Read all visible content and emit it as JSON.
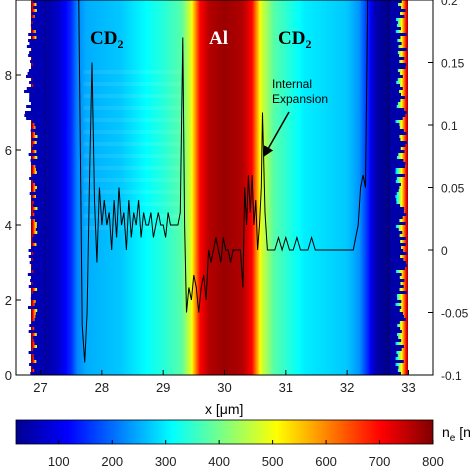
{
  "chart_data": {
    "type": "line",
    "background": "2D color map (density)",
    "regions": [
      {
        "label": "CD2",
        "color": "#000000",
        "x": 28.3
      },
      {
        "label": "Al",
        "color": "#ffffff",
        "x": 30.0
      },
      {
        "label": "CD2",
        "color": "#000000",
        "x": 31.3
      }
    ],
    "annotation": {
      "text_line1": "Internal",
      "text_line2": "Expansion",
      "arrow_target": {
        "x": 30.62,
        "y": 0.11
      }
    },
    "xlabel": "x [μm]",
    "xlim": [
      26.6,
      33.4
    ],
    "xticks": [
      "27",
      "28",
      "29",
      "30",
      "31",
      "32",
      "33"
    ],
    "left_ylim": [
      0,
      10
    ],
    "left_yticks": [
      "0",
      "2",
      "4",
      "6",
      "8"
    ],
    "right_ylim": [
      -0.1,
      0.2
    ],
    "right_yticks": [
      "-0.1",
      "-0.05",
      "0",
      "0.05",
      "0.1",
      "0.15",
      "0.2"
    ],
    "colorbar": {
      "label": "n_e [n",
      "ticks": [
        "100",
        "200",
        "300",
        "400",
        "500",
        "600",
        "700",
        "800"
      ],
      "range": [
        20,
        800
      ],
      "colormap": "jet"
    },
    "density_profile": {
      "x": [
        26.6,
        26.85,
        27.05,
        27.3,
        27.5,
        27.6,
        27.75,
        28.3,
        29.0,
        29.3,
        29.45,
        29.6,
        29.75,
        30.0,
        30.3,
        30.45,
        30.6,
        30.8,
        31.3,
        32.0,
        32.2,
        32.35,
        32.45,
        32.7,
        33.0,
        33.4
      ],
      "value": [
        800,
        800,
        40,
        80,
        150,
        220,
        250,
        270,
        340,
        380,
        480,
        700,
        760,
        780,
        760,
        700,
        480,
        380,
        300,
        270,
        230,
        140,
        60,
        20,
        800,
        800
      ]
    },
    "series": [
      {
        "axis": "right",
        "color": "#000000",
        "x": [
          27.62,
          27.68,
          27.72,
          27.76,
          27.8,
          27.84,
          27.88,
          27.92,
          27.96,
          28.0,
          28.04,
          28.08,
          28.12,
          28.16,
          28.2,
          28.24,
          28.28,
          28.32,
          28.36,
          28.4,
          28.44,
          28.48,
          28.52,
          28.56,
          28.6,
          28.64,
          28.68,
          28.72,
          28.76,
          28.8,
          28.84,
          28.88,
          28.92,
          28.96,
          29.0,
          29.04,
          29.08,
          29.12,
          29.16,
          29.2,
          29.24,
          29.28,
          29.32,
          29.35,
          29.38,
          29.42,
          29.46,
          29.5,
          29.54,
          29.58,
          29.62,
          29.66,
          29.7,
          29.74,
          29.78,
          29.82,
          29.86,
          29.9,
          29.94,
          29.98,
          30.02,
          30.06,
          30.1,
          30.14,
          30.18,
          30.22,
          30.26,
          30.3,
          30.33,
          30.36,
          30.39,
          30.42,
          30.45,
          30.48,
          30.51,
          30.54,
          30.57,
          30.6,
          30.62,
          30.66,
          30.7,
          30.76,
          30.82,
          30.88,
          30.94,
          31.0,
          31.06,
          31.12,
          31.18,
          31.24,
          31.3,
          31.36,
          31.42,
          31.48,
          31.54,
          31.6,
          31.66,
          31.72,
          31.78,
          31.84,
          31.9,
          31.96,
          32.02,
          32.06,
          32.1,
          32.14,
          32.18,
          32.22,
          32.26,
          32.3,
          32.34
        ],
        "y": [
          0.22,
          -0.06,
          -0.09,
          -0.05,
          0.06,
          0.15,
          0.04,
          -0.01,
          0.05,
          0.02,
          0.04,
          0.02,
          0.03,
          0.0,
          0.04,
          0.01,
          0.05,
          0.02,
          0.03,
          0.0,
          0.04,
          0.01,
          0.03,
          0.02,
          0.04,
          0.01,
          0.03,
          0.02,
          0.02,
          0.03,
          0.01,
          0.02,
          0.03,
          0.02,
          0.02,
          0.01,
          0.03,
          0.02,
          0.02,
          0.02,
          0.02,
          0.03,
          0.17,
          0.02,
          -0.05,
          -0.03,
          -0.04,
          -0.02,
          -0.03,
          -0.05,
          -0.03,
          -0.02,
          -0.04,
          0.0,
          -0.01,
          0.0,
          0.01,
          0.0,
          -0.01,
          0.01,
          0.0,
          0.0,
          -0.01,
          0.0,
          0.0,
          0.0,
          0.0,
          -0.03,
          0.05,
          0.02,
          0.06,
          0.03,
          0.06,
          0.02,
          0.04,
          0.0,
          0.02,
          0.05,
          0.11,
          0.03,
          0.0,
          0.0,
          0.0,
          0.01,
          0.0,
          0.01,
          0.0,
          0.0,
          0.01,
          0.0,
          0.0,
          0.0,
          0.01,
          0.0,
          0.0,
          0.0,
          0.0,
          0.0,
          0.0,
          0.0,
          0.0,
          0.0,
          0.0,
          0.0,
          0.0,
          0.01,
          0.02,
          0.05,
          0.06,
          0.05,
          0.22
        ]
      }
    ]
  }
}
